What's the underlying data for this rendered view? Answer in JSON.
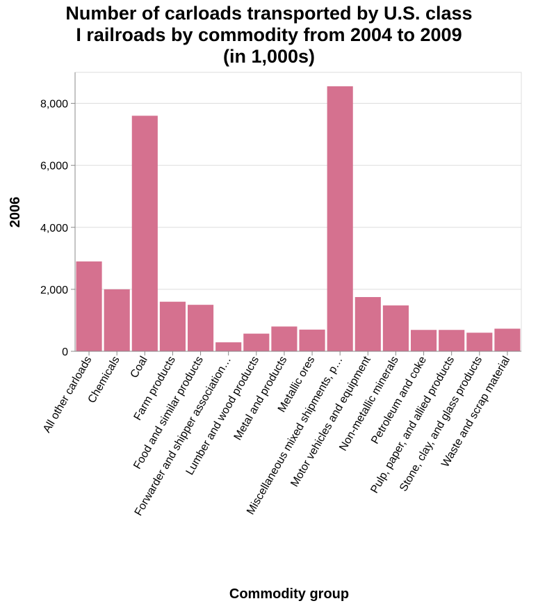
{
  "chart_data": {
    "type": "bar",
    "title_lines": [
      "Number of carloads transported by U.S. class",
      "I railroads by commodity from 2004 to 2009",
      "(in 1,000s)"
    ],
    "xlabel": "Commodity group",
    "ylabel": "2006",
    "ylim": [
      0,
      9000
    ],
    "yticks": [
      0,
      2000,
      4000,
      6000,
      8000
    ],
    "ytick_labels": [
      "0",
      "2,000",
      "4,000",
      "6,000",
      "8,000"
    ],
    "grid": true,
    "bar_color": "#d5718f",
    "categories": [
      "All other carloads",
      "Chemicals",
      "Coal",
      "Farm products",
      "Food and similar products",
      "Forwarder and shipper association…",
      "Lumber and wood products",
      "Metal and products",
      "Metallic ores",
      "Miscellaneous mixed shipments, p…",
      "Motor vehicles and equipment",
      "Non-metallic minerals",
      "Petroleum and coke",
      "Pulp, paper, and allied products",
      "Stone, clay, and glass products",
      "Waste and scrap material"
    ],
    "values": [
      2900,
      2000,
      7600,
      1600,
      1500,
      290,
      570,
      800,
      700,
      8550,
      1750,
      1480,
      690,
      690,
      600,
      730
    ]
  }
}
